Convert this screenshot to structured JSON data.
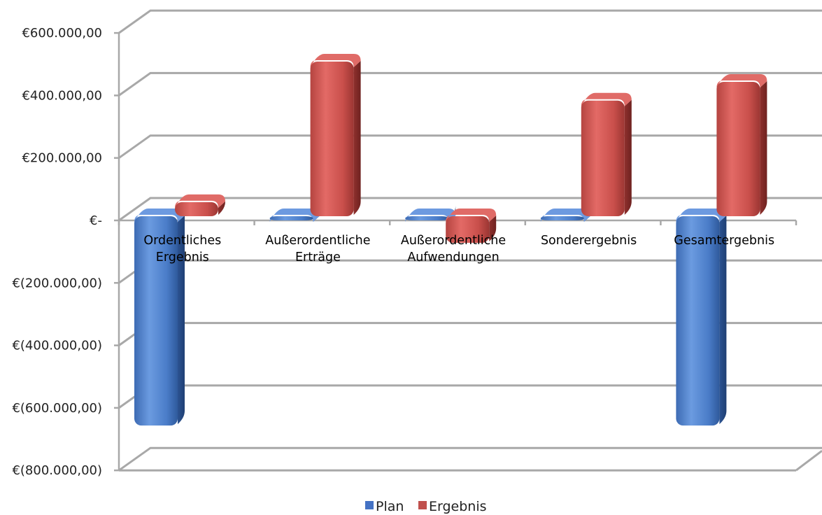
{
  "chart_data": {
    "type": "bar",
    "categories": [
      [
        "Ordentliches",
        "Ergebnis"
      ],
      [
        "Außerordentliche",
        "Erträge"
      ],
      [
        "Außerordentliche",
        "Aufwendungen"
      ],
      [
        "Sonderergebnis"
      ],
      [
        "Gesamtergebnis"
      ]
    ],
    "series": [
      {
        "name": "Plan",
        "values": [
          -670000,
          0,
          0,
          0,
          -670000
        ],
        "color": "#4472C4"
      },
      {
        "name": "Ergebnis",
        "values": [
          45000,
          495000,
          -85000,
          370000,
          430000
        ],
        "color": "#C0504D"
      }
    ],
    "ylim": [
      -800000,
      600000
    ],
    "ytick_values": [
      600000,
      400000,
      200000,
      0,
      -200000,
      -400000,
      -600000,
      -800000
    ],
    "ytick_labels": [
      "€600.000,00",
      "€400.000,00",
      "€200.000,00",
      "€-",
      "€(200.000,00)",
      "€(400.000,00)",
      "€(600.000,00)",
      "€(800.000,00)"
    ],
    "grid": true,
    "legend": "bottom",
    "style": "3d-cylinder"
  }
}
